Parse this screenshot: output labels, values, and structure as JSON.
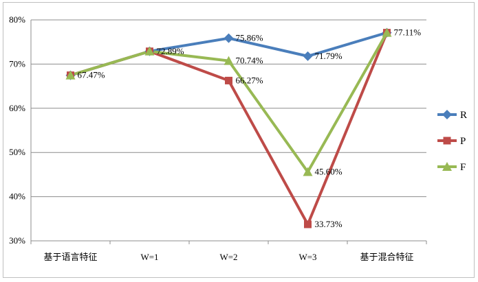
{
  "chart_data": {
    "type": "line",
    "categories": [
      "基于语言特征",
      "W=1",
      "W=2",
      "W=3",
      "基于混合特征"
    ],
    "yticks": [
      "30%",
      "40%",
      "50%",
      "60%",
      "70%",
      "80%"
    ],
    "ylim": [
      30,
      80
    ],
    "grid": true,
    "legend_position": "right",
    "series": [
      {
        "name": "R",
        "color": "#4a7ebb",
        "marker": "diamond",
        "values": [
          67.47,
          72.89,
          75.86,
          71.79,
          77.11
        ]
      },
      {
        "name": "P",
        "color": "#be4b48",
        "marker": "square",
        "values": [
          67.47,
          72.89,
          66.27,
          33.73,
          77.11
        ]
      },
      {
        "name": "F",
        "color": "#98b954",
        "marker": "triangle",
        "values": [
          67.47,
          72.89,
          70.74,
          45.6,
          77.11
        ]
      }
    ],
    "data_labels": [
      {
        "text": "67.47%",
        "category": 0,
        "value": 67.47
      },
      {
        "text": "72.89%",
        "category": 1,
        "value": 72.89
      },
      {
        "text": "75.86%",
        "category": 2,
        "value": 75.86
      },
      {
        "text": "70.74%",
        "category": 2,
        "value": 70.74
      },
      {
        "text": "66.27%",
        "category": 2,
        "value": 66.27
      },
      {
        "text": "71.79%",
        "category": 3,
        "value": 71.79
      },
      {
        "text": "45.60%",
        "category": 3,
        "value": 45.6
      },
      {
        "text": "33.73%",
        "category": 3,
        "value": 33.73
      },
      {
        "text": "77.11%",
        "category": 4,
        "value": 77.11
      }
    ]
  }
}
